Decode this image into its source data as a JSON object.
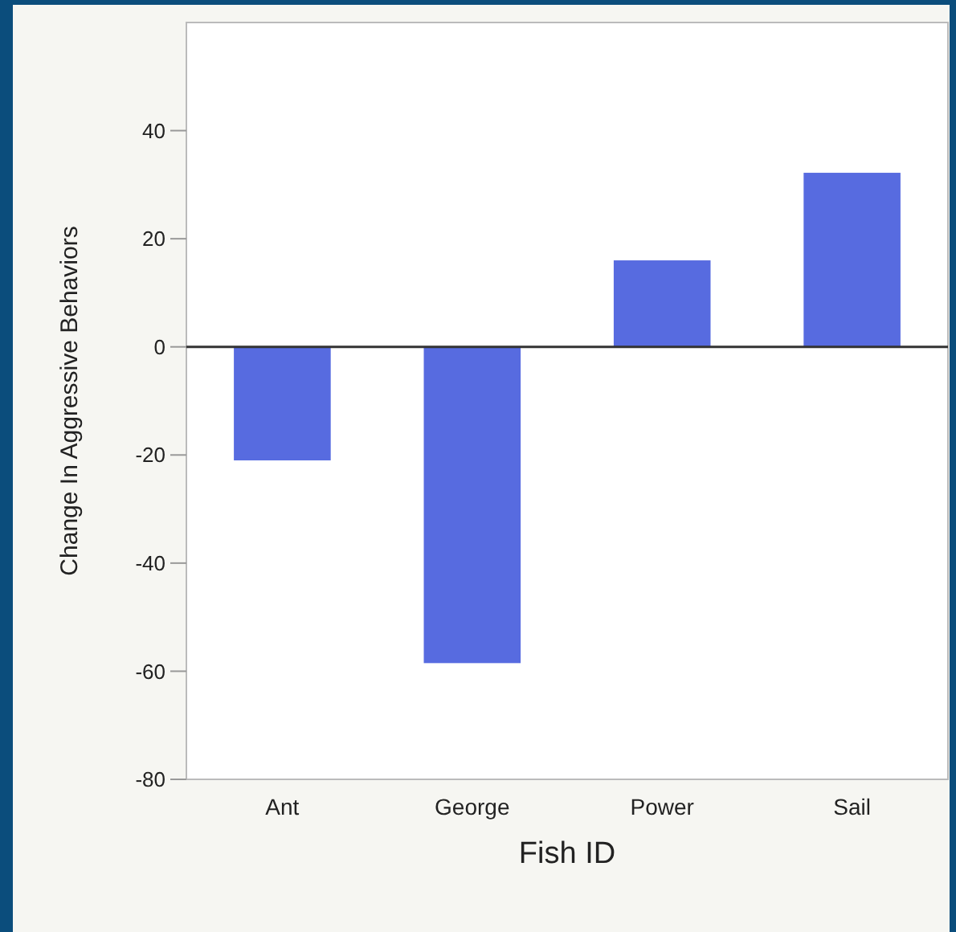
{
  "chart_data": {
    "type": "bar",
    "xlabel": "Fish ID",
    "ylabel": "Change In Aggressive Behaviors",
    "categories": [
      "Ant",
      "George",
      "Power",
      "Sail"
    ],
    "values": [
      -21,
      -58.5,
      16,
      32.2
    ],
    "color": "#576be0",
    "ylim": [
      -80,
      60
    ],
    "yticks": [
      -80,
      -60,
      -40,
      -20,
      0,
      20,
      40
    ],
    "ref_lines": [
      {
        "axis": "y",
        "value": 0,
        "color": "#333333"
      }
    ],
    "grid": false
  }
}
